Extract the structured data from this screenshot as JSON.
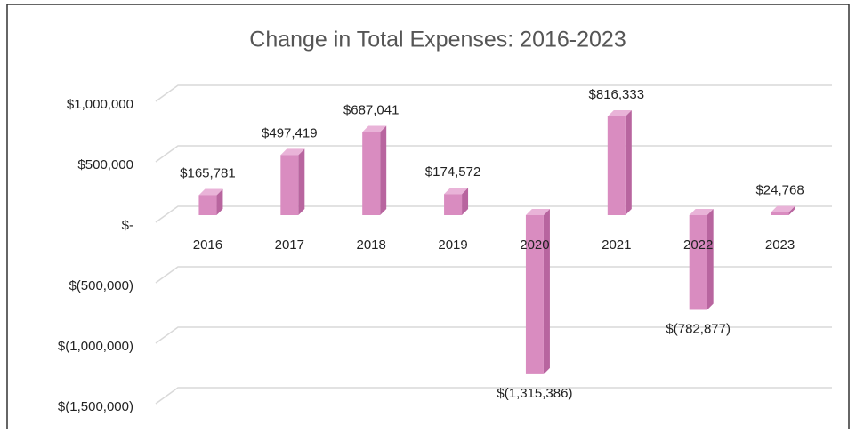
{
  "chart_data": {
    "type": "bar",
    "title": "Change in Total Expenses: 2016-2023",
    "categories": [
      "2016",
      "2017",
      "2018",
      "2019",
      "2020",
      "2021",
      "2022",
      "2023"
    ],
    "values": [
      165781,
      497419,
      687041,
      174572,
      -1315386,
      816333,
      -782877,
      24768
    ],
    "value_labels": [
      "$165,781",
      "$497,419",
      "$687,041",
      "$174,572",
      "$(1,315,386)",
      "$816,333",
      "$(782,877)",
      "$24,768"
    ],
    "color": "#d98cc0",
    "ylim": [
      -1500000,
      1000000
    ],
    "yticks": [
      {
        "value": -1500000,
        "label": "$(1,500,000)"
      },
      {
        "value": -1000000,
        "label": "$(1,000,000)"
      },
      {
        "value": -500000,
        "label": "$(500,000)"
      },
      {
        "value": 0,
        "label": "$-"
      },
      {
        "value": 500000,
        "label": "$500,000"
      },
      {
        "value": 1000000,
        "label": "$1,000,000"
      }
    ],
    "grid": true
  }
}
